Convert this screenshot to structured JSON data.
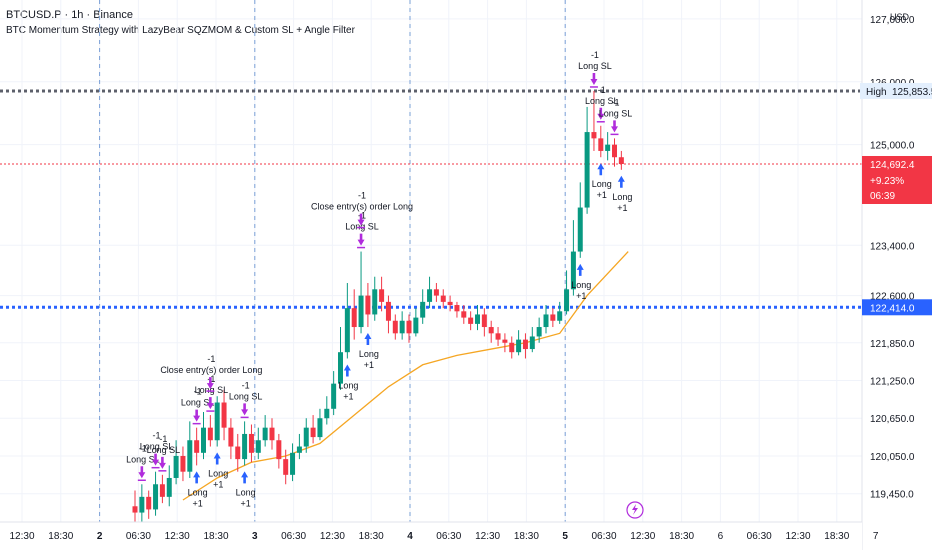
{
  "header": {
    "symbol": "BTCUSD.P · 1h · Binance",
    "strategy": "BTC Momentum Strategy with LazyBear SQZMOM & Custom SL + Angle Filter"
  },
  "currency": "USD",
  "colors": {
    "up": "#089981",
    "down": "#f23645",
    "ema": "#f5a623",
    "entry": "#2962ff",
    "exit": "#b02cdc",
    "current": "#f23645",
    "grid": "#f0f3fa"
  },
  "chart_data": {
    "type": "candlestick",
    "ylim": [
      119000,
      127300
    ],
    "y_ticks": [
      127000,
      126000,
      125000,
      123400,
      122600,
      121850,
      121250,
      120650,
      120050,
      119450
    ],
    "y_tick_labels": [
      "127,000.0",
      "126,000.0",
      "125,000.0",
      "123,400.0",
      "122,600.0",
      "121,850.0",
      "121,250.0",
      "120,650.0",
      "120,050.0",
      "119,450.0"
    ],
    "x_tick_labels": [
      "12:30",
      "18:30",
      "2",
      "06:30",
      "12:30",
      "18:30",
      "3",
      "06:30",
      "12:30",
      "18:30",
      "4",
      "06:30",
      "12:30",
      "18:30",
      "5",
      "06:30",
      "12:30",
      "18:30",
      "6",
      "06:30",
      "12:30",
      "18:30",
      "7"
    ],
    "session_breaks": [
      "2",
      "3",
      "4",
      "5"
    ],
    "price_lines": {
      "high": {
        "label": "High",
        "value": 125853.5,
        "text": "125,853.5"
      },
      "current": {
        "value": 124692.4,
        "text": "124,692.4",
        "change": "+9.23%",
        "countdown": "06:39"
      },
      "level": {
        "value": 122414.0,
        "text": "122,414.0"
      }
    },
    "candles": [
      [
        119250,
        119150,
        119500,
        118900
      ],
      [
        119150,
        119400,
        119600,
        119000
      ],
      [
        119400,
        119200,
        119500,
        119050
      ],
      [
        119200,
        119600,
        119800,
        119100
      ],
      [
        119600,
        119400,
        119750,
        119300
      ],
      [
        119400,
        119700,
        119900,
        119250
      ],
      [
        119700,
        120050,
        120300,
        119600
      ],
      [
        120050,
        119800,
        120200,
        119650
      ],
      [
        119800,
        120300,
        120600,
        119700
      ],
      [
        120300,
        120100,
        120500,
        119900
      ],
      [
        120100,
        120500,
        120750,
        120000
      ],
      [
        120500,
        120300,
        120700,
        120200
      ],
      [
        120300,
        120900,
        121000,
        120200
      ],
      [
        120900,
        120500,
        121100,
        120300
      ],
      [
        120500,
        120200,
        120650,
        120000
      ],
      [
        120200,
        120000,
        120400,
        119800
      ],
      [
        120000,
        120400,
        120600,
        119900
      ],
      [
        120400,
        120100,
        120550,
        119950
      ],
      [
        120100,
        120300,
        120500,
        120000
      ],
      [
        120300,
        120500,
        120700,
        120200
      ],
      [
        120500,
        120300,
        120650,
        120150
      ],
      [
        120300,
        120000,
        120400,
        119850
      ],
      [
        120000,
        119750,
        120150,
        119600
      ],
      [
        119750,
        120100,
        120250,
        119650
      ],
      [
        120100,
        120200,
        120400,
        120000
      ],
      [
        120200,
        120500,
        120650,
        120100
      ],
      [
        120500,
        120350,
        120700,
        120250
      ],
      [
        120350,
        120650,
        120800,
        120300
      ],
      [
        120650,
        120800,
        121000,
        120550
      ],
      [
        120800,
        121200,
        121400,
        120700
      ],
      [
        121200,
        121700,
        122100,
        121100
      ],
      [
        121700,
        122400,
        122800,
        121600
      ],
      [
        122400,
        122100,
        122700,
        121900
      ],
      [
        122100,
        122600,
        123300,
        122000
      ],
      [
        122600,
        122300,
        122800,
        122100
      ],
      [
        122300,
        122700,
        122900,
        122200
      ],
      [
        122700,
        122500,
        122900,
        122350
      ],
      [
        122500,
        122200,
        122600,
        122000
      ],
      [
        122200,
        122000,
        122300,
        121900
      ],
      [
        122000,
        122200,
        122350,
        121900
      ],
      [
        122200,
        122000,
        122300,
        121850
      ],
      [
        122000,
        122250,
        122400,
        121950
      ],
      [
        122250,
        122500,
        122700,
        122150
      ],
      [
        122500,
        122700,
        122900,
        122400
      ],
      [
        122700,
        122600,
        122800,
        122500
      ],
      [
        122600,
        122500,
        122700,
        122400
      ],
      [
        122500,
        122450,
        122600,
        122350
      ],
      [
        122450,
        122350,
        122500,
        122250
      ],
      [
        122350,
        122250,
        122450,
        122150
      ],
      [
        122250,
        122150,
        122350,
        122050
      ],
      [
        122150,
        122300,
        122450,
        122050
      ],
      [
        122300,
        122100,
        122400,
        121950
      ],
      [
        122100,
        122000,
        122200,
        121850
      ],
      [
        122000,
        121900,
        122100,
        121800
      ],
      [
        121900,
        121850,
        122000,
        121700
      ],
      [
        121850,
        121700,
        121950,
        121600
      ],
      [
        121700,
        121900,
        122050,
        121650
      ],
      [
        121900,
        121750,
        122000,
        121600
      ],
      [
        121750,
        121950,
        122100,
        121700
      ],
      [
        121950,
        122100,
        122250,
        121850
      ],
      [
        122100,
        122300,
        122450,
        122000
      ],
      [
        122300,
        122200,
        122400,
        122100
      ],
      [
        122200,
        122350,
        122500,
        122150
      ],
      [
        122350,
        122700,
        123000,
        122300
      ],
      [
        122700,
        123300,
        123800,
        122600
      ],
      [
        123300,
        124000,
        124400,
        123200
      ],
      [
        124000,
        125200,
        125600,
        123900
      ],
      [
        125200,
        125100,
        125853.5,
        124900
      ],
      [
        125100,
        124900,
        125300,
        124800
      ],
      [
        124900,
        125000,
        125200,
        124750
      ],
      [
        125000,
        124800,
        125100,
        124650
      ],
      [
        124800,
        124692.4,
        124900,
        124600
      ]
    ],
    "ema": [
      [
        7,
        119350
      ],
      [
        12,
        119700
      ],
      [
        17,
        119950
      ],
      [
        22,
        120050
      ],
      [
        27,
        120250
      ],
      [
        32,
        120700
      ],
      [
        37,
        121150
      ],
      [
        42,
        121500
      ],
      [
        47,
        121650
      ],
      [
        52,
        121750
      ],
      [
        57,
        121850
      ],
      [
        62,
        122000
      ],
      [
        66,
        122600
      ],
      [
        72,
        123300
      ]
    ],
    "markers": [
      {
        "i": 1,
        "type": "exit",
        "n": "-1",
        "label": "Long SL"
      },
      {
        "i": 3,
        "type": "exit",
        "n": "-1",
        "label": "Long SL"
      },
      {
        "i": 4,
        "type": "exit",
        "n": "-1",
        "label": "Long SL"
      },
      {
        "i": 9,
        "type": "exit",
        "n": "-1",
        "label": "Long SL"
      },
      {
        "i": 11,
        "type": "exit",
        "n": "-1",
        "label": "Long SL"
      },
      {
        "i": 11,
        "type": "exit",
        "n": "-1",
        "label": "Close entry(s) order Long",
        "high": true
      },
      {
        "i": 16,
        "type": "exit",
        "n": "-1",
        "label": "Long SL"
      },
      {
        "i": 9,
        "type": "entry",
        "n": "+1",
        "label": "Long"
      },
      {
        "i": 12,
        "type": "entry",
        "n": "+1",
        "label": "Long"
      },
      {
        "i": 16,
        "type": "entry",
        "n": "+1",
        "label": "Long"
      },
      {
        "i": 33,
        "type": "exit",
        "n": "-1",
        "label": "Long SL"
      },
      {
        "i": 33,
        "type": "exit",
        "n": "-1",
        "label": "Close entry(s) order Long",
        "high": true
      },
      {
        "i": 31,
        "type": "entry",
        "n": "+1",
        "label": "Long"
      },
      {
        "i": 34,
        "type": "entry",
        "n": "+1",
        "label": "Long"
      },
      {
        "i": 65,
        "type": "entry",
        "n": "+1",
        "label": "Long"
      },
      {
        "i": 67,
        "type": "exit",
        "n": "-1",
        "label": "Long SL"
      },
      {
        "i": 68,
        "type": "exit",
        "n": "-1",
        "label": "Long SL"
      },
      {
        "i": 70,
        "type": "exit",
        "n": "-1",
        "label": "Long SL"
      },
      {
        "i": 68,
        "type": "entry",
        "n": "+1",
        "label": "Long"
      },
      {
        "i": 71,
        "type": "entry",
        "n": "+1",
        "label": "Long"
      }
    ]
  }
}
